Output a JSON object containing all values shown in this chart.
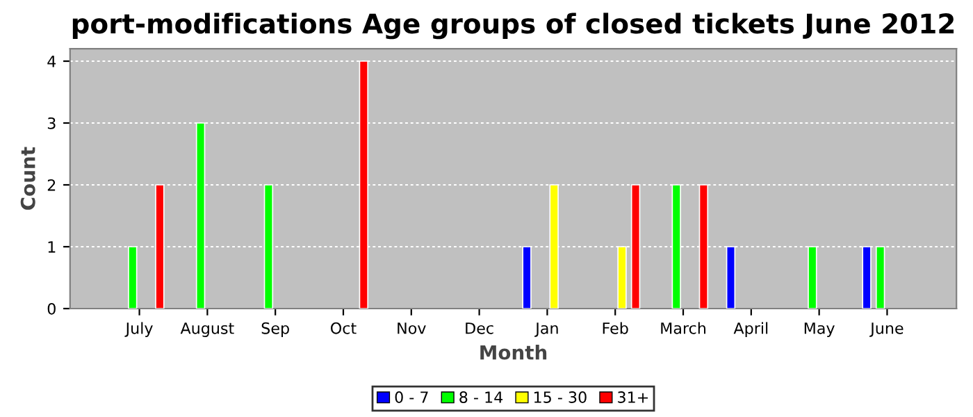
{
  "chart_data": {
    "type": "bar",
    "title": "port-modifications Age groups of closed tickets June 2012",
    "xlabel": "Month",
    "ylabel": "Count",
    "categories": [
      "July",
      "August",
      "Sep",
      "Oct",
      "Nov",
      "Dec",
      "Jan",
      "Feb",
      "March",
      "April",
      "May",
      "June"
    ],
    "series": [
      {
        "name": "0 - 7",
        "color": "#0000ff",
        "values": [
          null,
          null,
          null,
          null,
          null,
          null,
          1,
          null,
          null,
          1,
          null,
          1
        ]
      },
      {
        "name": "8 - 14",
        "color": "#00ff00",
        "values": [
          1,
          3,
          2,
          null,
          null,
          null,
          null,
          null,
          2,
          null,
          1,
          1
        ]
      },
      {
        "name": "15 - 30",
        "color": "#ffff00",
        "values": [
          null,
          null,
          null,
          null,
          null,
          null,
          2,
          1,
          null,
          null,
          null,
          null
        ]
      },
      {
        "name": "31+",
        "color": "#ff0000",
        "values": [
          2,
          null,
          null,
          4,
          null,
          null,
          null,
          2,
          2,
          null,
          null,
          null
        ]
      }
    ],
    "ylim": [
      0,
      4.2
    ],
    "yticks": [
      0,
      1,
      2,
      3,
      4
    ],
    "grid": "y",
    "legend": "bottom"
  }
}
